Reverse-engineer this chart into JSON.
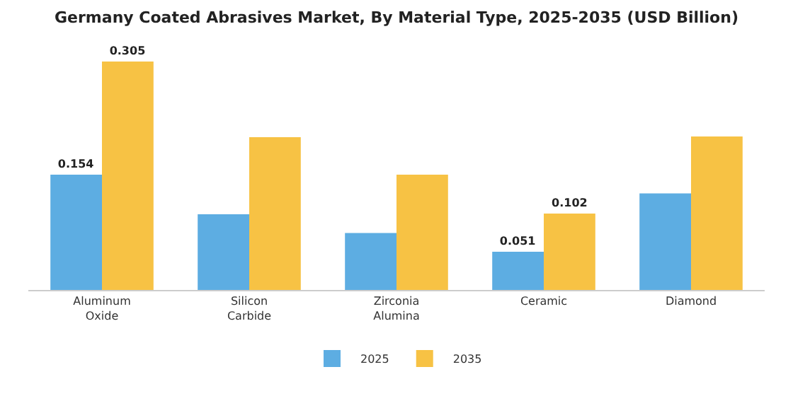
{
  "chart_data": {
    "type": "bar",
    "title": "Germany Coated Abrasives Market, By Material Type, 2025-2035 (USD Billion)",
    "categories": [
      "Aluminum Oxide",
      "Silicon Carbide",
      "Zirconia Alumina",
      "Ceramic",
      "Diamond"
    ],
    "series": [
      {
        "name": "2025",
        "color": "#5dade2",
        "values": [
          0.154,
          0.101,
          0.076,
          0.051,
          0.129
        ],
        "value_labels": [
          "0.154",
          null,
          null,
          "0.051",
          null
        ]
      },
      {
        "name": "2035",
        "color": "#f7c244",
        "values": [
          0.305,
          0.204,
          0.154,
          0.102,
          0.205
        ],
        "value_labels": [
          "0.305",
          null,
          null,
          "0.102",
          null
        ]
      }
    ],
    "tick_labels": "x",
    "legend": "bottom"
  }
}
